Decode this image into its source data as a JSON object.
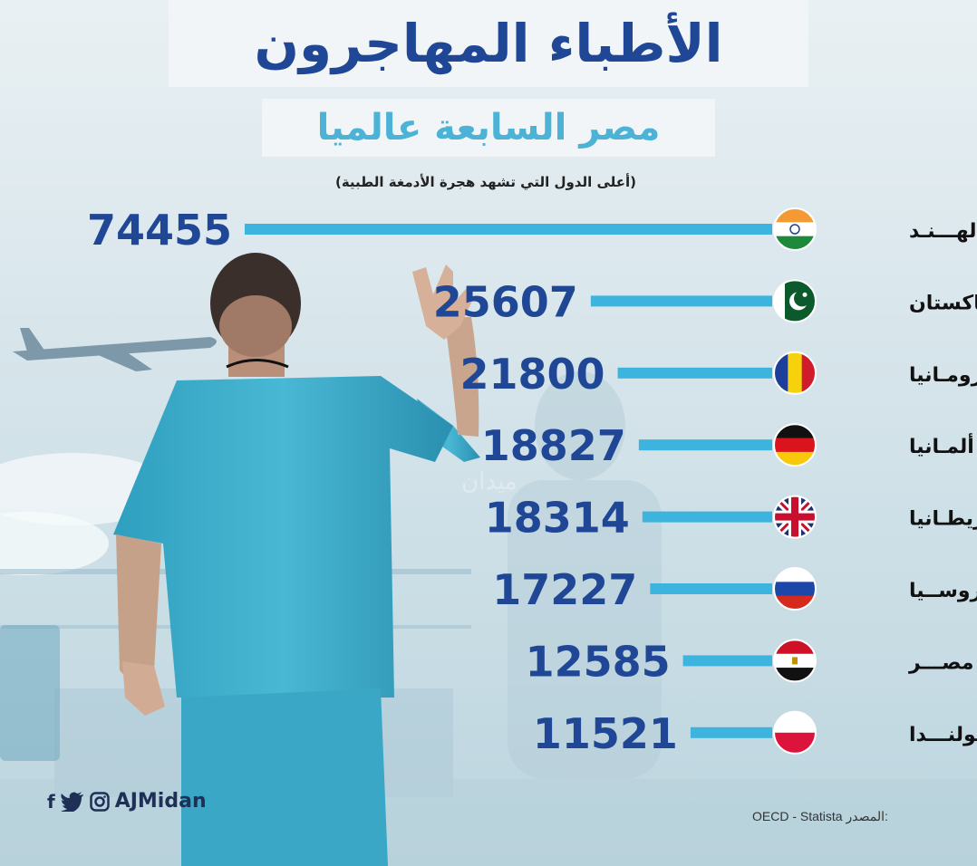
{
  "title": "الأطباء المهاجرون",
  "subtitle": "مصر السابعة عالميا",
  "note": "(أعلى الدول التي تشهد هجرة الأدمغة الطبية)",
  "brand": {
    "handle": "AJMidan",
    "icons": [
      "facebook-icon",
      "twitter-icon",
      "instagram-icon"
    ]
  },
  "source": {
    "label": "المصدر:",
    "text": "OECD - Statista"
  },
  "colors": {
    "bar": "#3db4dd",
    "value": "#1f4796",
    "title": "#1f4796",
    "subtitle": "#4cb3d6"
  },
  "chart_data": {
    "type": "bar",
    "orientation": "horizontal",
    "categories": [
      "الهند",
      "باكستان",
      "رومانيا",
      "ألمانيا",
      "بريطانيا",
      "روسيا",
      "مصر",
      "بولندا"
    ],
    "values": [
      74455,
      25607,
      21800,
      18827,
      18314,
      17227,
      12585,
      11521
    ],
    "labels": [
      "الهـــنـد",
      "باكستان",
      "رومـانيا",
      "ألمـانيا",
      "بريطـانيا",
      "روســيا",
      "مصـــر",
      "بولنـــدا"
    ],
    "flags": [
      "india",
      "pakistan",
      "romania",
      "germany",
      "uk",
      "russia",
      "egypt",
      "poland"
    ]
  }
}
